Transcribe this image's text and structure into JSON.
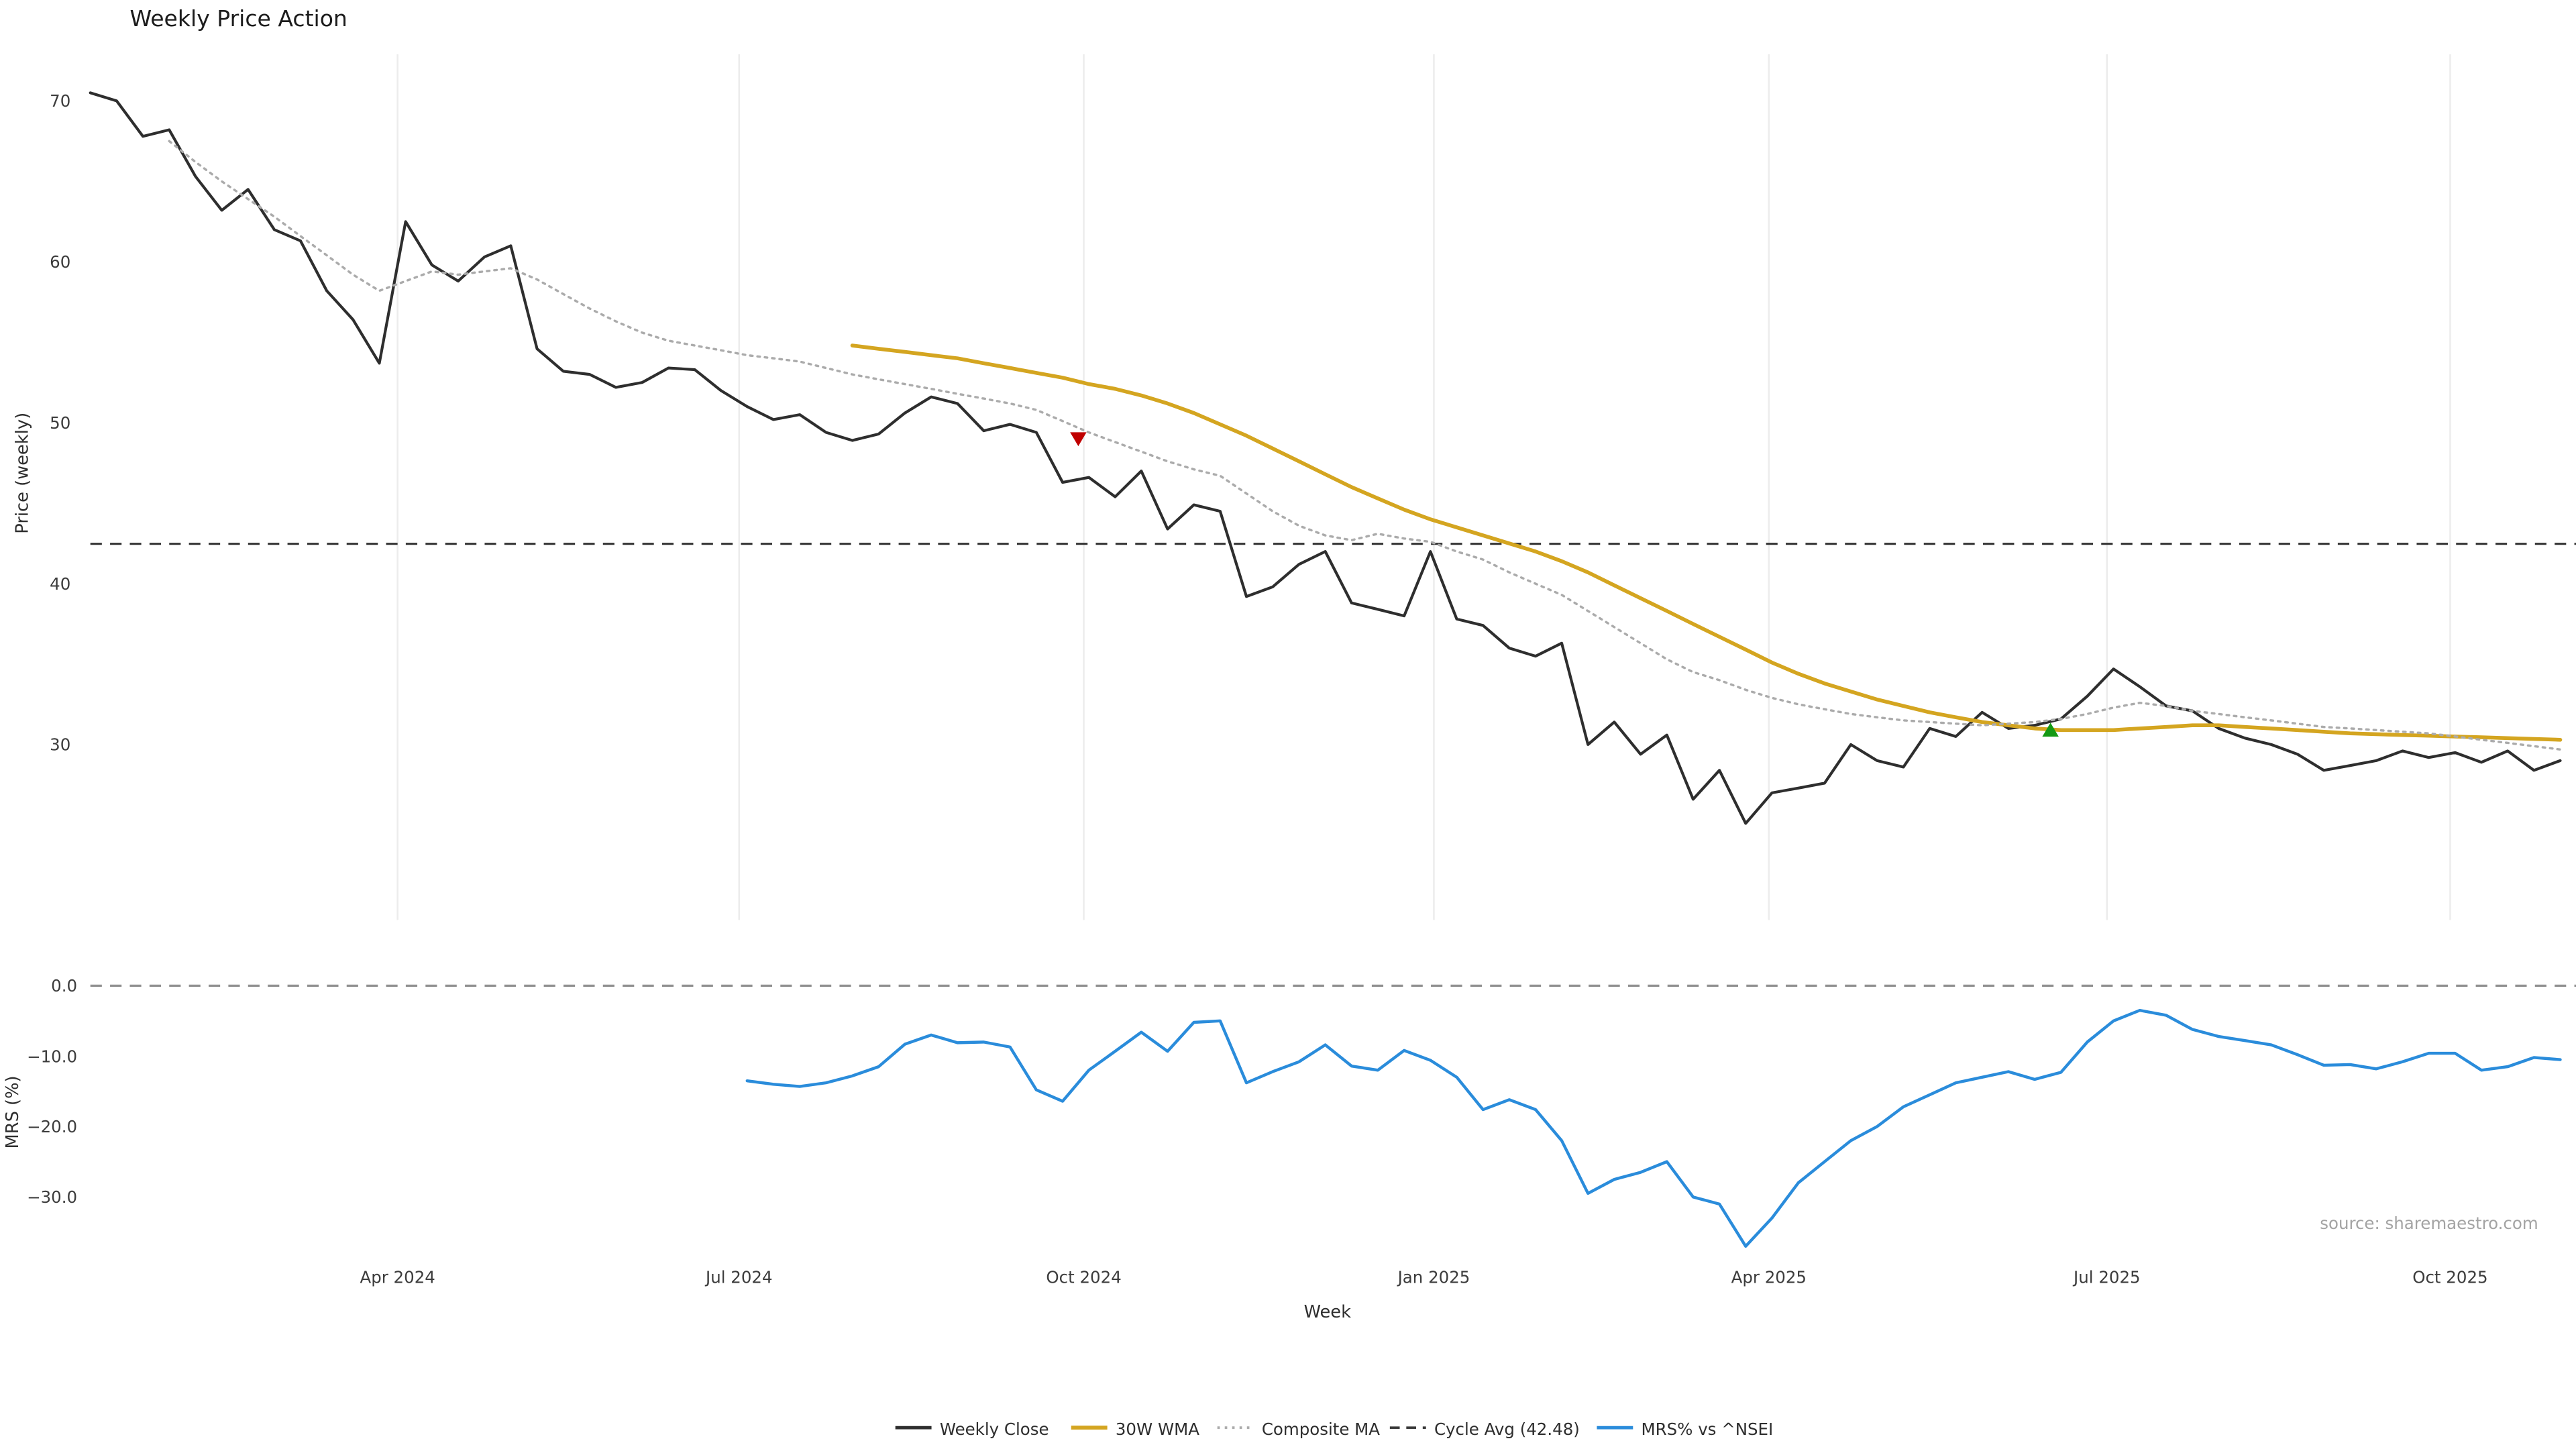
{
  "title": "Weekly Price Action",
  "source_note": "source: sharemaestro.com",
  "axes": {
    "price_ylabel": "Price (weekly)",
    "mrs_ylabel": "MRS (%)",
    "xlabel": "Week"
  },
  "legend": {
    "weekly_close": "Weekly Close",
    "wma": "30W WMA",
    "composite": "Composite MA",
    "cycle_avg": "Cycle Avg (42.48)",
    "mrs": "MRS% vs ^NSEI"
  },
  "colors": {
    "weekly_close": "#2e2e2e",
    "wma_30w": "#d4a520",
    "composite_ma": "#ababab",
    "cycle_avg": "#3a3a3a",
    "mrs": "#2a8cdb",
    "sell_marker": "#c00000",
    "buy_marker": "#149914",
    "grid": "#ececec",
    "zero_line": "#909090"
  },
  "chart_data": {
    "type": "line",
    "title": "Weekly Price Action",
    "xlabel": "Week",
    "x_unit": "week_index_from_mid_jan_2024",
    "xlim": [
      0,
      94.6
    ],
    "legend_position": "bottom-center",
    "x_ticks": [
      {
        "week": 11.69,
        "label": "Apr 2024"
      },
      {
        "week": 24.69,
        "label": "Jul 2024"
      },
      {
        "week": 37.81,
        "label": "Oct 2024"
      },
      {
        "week": 51.13,
        "label": "Jan 2025"
      },
      {
        "week": 63.88,
        "label": "Apr 2025"
      },
      {
        "week": 76.75,
        "label": "Jul 2025"
      },
      {
        "week": 89.81,
        "label": "Oct 2025"
      }
    ],
    "panels": [
      {
        "name": "price",
        "ylabel": "Price (weekly)",
        "ylim": [
          19.1,
          72.9
        ],
        "grid": "vertical",
        "y_ticks": [
          {
            "value": 30,
            "label": "30"
          },
          {
            "value": 40,
            "label": "40"
          },
          {
            "value": 50,
            "label": "50"
          },
          {
            "value": 60,
            "label": "60"
          },
          {
            "value": 70,
            "label": "70"
          }
        ],
        "reference_lines": [
          {
            "name": "cycle_avg",
            "label": "Cycle Avg (42.48)",
            "value": 42.48,
            "style": "dashed"
          }
        ],
        "markers": [
          {
            "type": "sell",
            "shape": "triangle-down",
            "week": 37.6,
            "value": 49.0
          },
          {
            "type": "buy",
            "shape": "triangle-up",
            "week": 74.6,
            "value": 30.9
          }
        ],
        "series": [
          {
            "name": "Weekly Close",
            "slug": "weekly-close",
            "style": "solid",
            "color_key": "weekly_close",
            "width": 1.7,
            "start_week": 0,
            "values": [
              70.5,
              70.0,
              67.8,
              68.2,
              65.3,
              63.2,
              64.5,
              62.0,
              61.3,
              58.2,
              56.4,
              53.7,
              62.5,
              59.8,
              58.8,
              60.3,
              61.0,
              54.6,
              53.2,
              53.0,
              52.2,
              52.5,
              53.4,
              53.3,
              52.0,
              51.0,
              50.2,
              50.5,
              49.4,
              48.9,
              49.3,
              50.6,
              51.6,
              51.2,
              49.5,
              49.9,
              49.4,
              46.3,
              46.6,
              45.4,
              47.0,
              43.4,
              44.9,
              44.5,
              39.2,
              39.8,
              41.2,
              42.0,
              38.8,
              38.4,
              38.0,
              42.0,
              37.8,
              37.4,
              36.0,
              35.5,
              36.3,
              30.0,
              31.4,
              29.4,
              30.6,
              26.6,
              28.4,
              25.1,
              27.0,
              27.3,
              27.6,
              30.0,
              29.0,
              28.6,
              31.0,
              30.5,
              32.0,
              31.0,
              31.2,
              31.6,
              33.0,
              34.7,
              33.6,
              32.4,
              32.1,
              31.0,
              30.4,
              30.0,
              29.4,
              28.4,
              28.7,
              29.0,
              29.6,
              29.2,
              29.5,
              28.9,
              29.6,
              28.4,
              29.0
            ]
          },
          {
            "name": "30W WMA",
            "slug": "wma-30w",
            "style": "solid",
            "color_key": "wma_30w",
            "width": 2.3,
            "start_week": 29,
            "values": [
              54.8,
              54.6,
              54.4,
              54.2,
              54.0,
              53.7,
              53.4,
              53.1,
              52.8,
              52.4,
              52.1,
              51.7,
              51.2,
              50.6,
              49.9,
              49.2,
              48.4,
              47.6,
              46.8,
              46.0,
              45.3,
              44.6,
              44.0,
              43.5,
              43.0,
              42.5,
              42.0,
              41.4,
              40.7,
              39.9,
              39.1,
              38.3,
              37.5,
              36.7,
              35.9,
              35.1,
              34.4,
              33.8,
              33.3,
              32.8,
              32.4,
              32.0,
              31.7,
              31.4,
              31.2,
              31.0,
              30.9,
              30.9,
              30.9,
              31.0,
              31.1,
              31.2,
              31.2,
              31.1,
              31.0,
              30.9,
              30.8,
              30.7,
              30.65,
              30.6,
              30.55,
              30.5,
              30.45,
              30.4,
              30.35,
              30.3
            ]
          },
          {
            "name": "Composite MA",
            "slug": "composite-ma",
            "style": "dotted",
            "color_key": "composite_ma",
            "width": 1.4,
            "start_week": 3,
            "values": [
              67.5,
              66.2,
              65.0,
              63.9,
              62.8,
              61.6,
              60.4,
              59.2,
              58.2,
              58.8,
              59.4,
              59.2,
              59.4,
              59.6,
              58.9,
              58.0,
              57.1,
              56.3,
              55.6,
              55.1,
              54.8,
              54.5,
              54.2,
              54.0,
              53.8,
              53.4,
              53.0,
              52.7,
              52.4,
              52.1,
              51.8,
              51.5,
              51.2,
              50.8,
              50.1,
              49.4,
              48.8,
              48.2,
              47.6,
              47.1,
              46.7,
              45.6,
              44.5,
              43.6,
              43.0,
              42.7,
              43.1,
              42.8,
              42.6,
              42.0,
              41.5,
              40.7,
              40.0,
              39.3,
              38.3,
              37.3,
              36.3,
              35.3,
              34.5,
              34.0,
              33.4,
              32.9,
              32.5,
              32.2,
              31.9,
              31.7,
              31.5,
              31.4,
              31.3,
              31.2,
              31.3,
              31.4,
              31.6,
              31.9,
              32.3,
              32.6,
              32.4,
              32.1,
              31.9,
              31.7,
              31.5,
              31.3,
              31.1,
              31.0,
              30.9,
              30.8,
              30.7,
              30.5,
              30.3,
              30.1,
              29.9,
              29.7
            ]
          }
        ]
      },
      {
        "name": "mrs",
        "ylabel": "MRS (%)",
        "ylim": [
          -38.5,
          3.5
        ],
        "grid": "none",
        "y_ticks": [
          {
            "value": 0,
            "label": "0.0"
          },
          {
            "value": -10,
            "label": "−10.0"
          },
          {
            "value": -20,
            "label": "−20.0"
          },
          {
            "value": -30,
            "label": "−30.0"
          }
        ],
        "reference_lines": [
          {
            "name": "zero",
            "label": "0",
            "value": 0,
            "style": "dashed"
          }
        ],
        "markers": [],
        "series": [
          {
            "name": "MRS% vs ^NSEI",
            "slug": "mrs-vs-nsei",
            "style": "solid",
            "color_key": "mrs",
            "width": 1.8,
            "start_week": 25,
            "values": [
              -13.5,
              -14.0,
              -14.3,
              -13.8,
              -12.8,
              -11.5,
              -8.3,
              -7.0,
              -8.1,
              -8.0,
              -8.7,
              -14.8,
              -16.4,
              -12.0,
              -9.3,
              -6.6,
              -9.3,
              -5.2,
              -5.0,
              -13.8,
              -12.2,
              -10.8,
              -8.4,
              -11.4,
              -12.0,
              -9.2,
              -10.6,
              -13.0,
              -17.6,
              -16.2,
              -17.6,
              -22.0,
              -29.5,
              -27.5,
              -26.5,
              -25.0,
              -30.0,
              -31.0,
              -37.0,
              -33.0,
              -28.0,
              -25.0,
              -22.0,
              -20.0,
              -17.2,
              -15.5,
              -13.8,
              -13.0,
              -12.2,
              -13.3,
              -12.3,
              -8.0,
              -5.0,
              -3.5,
              -4.2,
              -6.2,
              -7.2,
              -7.8,
              -8.4,
              -9.8,
              -11.3,
              -11.2,
              -11.8,
              -10.8,
              -9.6,
              -9.6,
              -12.0,
              -11.5,
              -10.2,
              -10.5
            ]
          }
        ]
      }
    ]
  }
}
